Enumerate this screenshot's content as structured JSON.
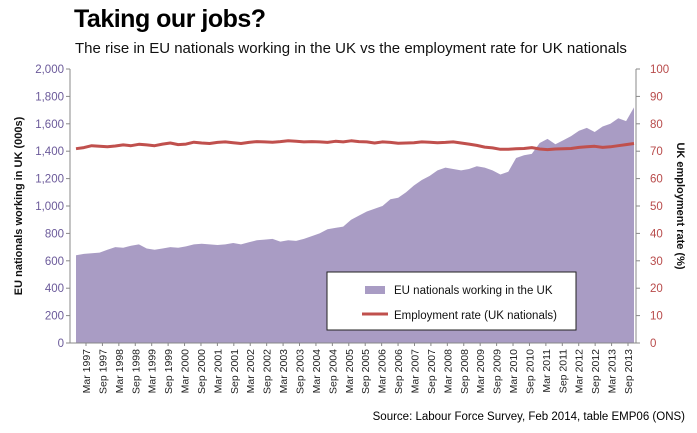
{
  "header": {
    "title": "Taking our jobs?",
    "subtitle": "The rise in EU nationals working in the UK vs the employment rate for UK nationals"
  },
  "footer": {
    "source": "Source: Labour Force Survey, Feb 2014, table EMP06 (ONS)"
  },
  "colors": {
    "area": "#a99cc4",
    "line": "#c0504d",
    "left_axis_text": "#6b5a9a",
    "right_axis_text": "#b84a4a"
  },
  "chart_data": {
    "type": "area",
    "title": "Taking our jobs?",
    "subtitle": "The rise in EU nationals working in the UK vs the employment rate for UK nationals",
    "xlabel": "",
    "ylabel": "EU nationals working in UK (000s)",
    "y2label": "UK employment rate (%)",
    "ylim": [
      0,
      2000
    ],
    "y2lim": [
      0,
      100
    ],
    "yticks": [
      "0",
      "200",
      "400",
      "600",
      "800",
      "1,000",
      "1,200",
      "1,400",
      "1,600",
      "1,800",
      "2,000"
    ],
    "y2ticks": [
      "0",
      "10",
      "20",
      "30",
      "40",
      "50",
      "60",
      "70",
      "80",
      "90",
      "100"
    ],
    "xtick_labels": [
      "Mar 1997",
      "Sep 1997",
      "Mar 1998",
      "Sep 1998",
      "Mar 1999",
      "Sep 1999",
      "Mar 2000",
      "Sep 2000",
      "Mar 2001",
      "Sep 2001",
      "Mar 2002",
      "Sep 2002",
      "Mar 2003",
      "Sep 2003",
      "Mar 2004",
      "Sep 2004",
      "Mar 2005",
      "Sep 2005",
      "Mar 2006",
      "Sep 2006",
      "Mar 2007",
      "Sep 2007",
      "Mar 2008",
      "Sep 2008",
      "Mar 2009",
      "Sep 2009",
      "Mar 2010",
      "Sep 2010",
      "Mar 2011",
      "Sep 2011",
      "Mar 2012",
      "Sep 2012",
      "Mar 2013",
      "Sep 2013"
    ],
    "grid": false,
    "legend_position": "bottom-right",
    "series": [
      {
        "name": "EU nationals working in the UK",
        "type": "area",
        "axis": "left",
        "values": [
          640,
          650,
          655,
          660,
          680,
          700,
          695,
          710,
          720,
          690,
          680,
          690,
          700,
          695,
          705,
          720,
          725,
          720,
          715,
          720,
          730,
          720,
          735,
          750,
          755,
          760,
          740,
          750,
          745,
          760,
          780,
          800,
          830,
          840,
          850,
          900,
          930,
          960,
          980,
          1000,
          1050,
          1060,
          1100,
          1150,
          1190,
          1220,
          1260,
          1280,
          1270,
          1260,
          1270,
          1290,
          1280,
          1260,
          1230,
          1250,
          1350,
          1370,
          1380,
          1460,
          1490,
          1450,
          1480,
          1510,
          1550,
          1570,
          1540,
          1580,
          1600,
          1640,
          1620,
          1720
        ]
      },
      {
        "name": "Employment rate (UK nationals)",
        "type": "line",
        "axis": "right",
        "values": [
          70.9,
          71.3,
          72.0,
          71.8,
          71.6,
          71.9,
          72.3,
          72.0,
          72.5,
          72.3,
          72.0,
          72.6,
          73.0,
          72.4,
          72.6,
          73.3,
          73.0,
          72.8,
          73.2,
          73.4,
          73.1,
          72.8,
          73.2,
          73.5,
          73.4,
          73.3,
          73.5,
          73.8,
          73.6,
          73.4,
          73.5,
          73.4,
          73.2,
          73.6,
          73.4,
          73.8,
          73.5,
          73.4,
          73.0,
          73.4,
          73.2,
          72.9,
          73.0,
          73.1,
          73.4,
          73.3,
          73.1,
          73.2,
          73.4,
          73.0,
          72.6,
          72.1,
          71.5,
          71.2,
          70.7,
          70.7,
          70.9,
          71.0,
          71.3,
          70.8,
          70.6,
          70.8,
          70.9,
          71.0,
          71.4,
          71.6,
          71.8,
          71.4,
          71.6,
          72.0,
          72.4,
          72.8
        ]
      }
    ]
  }
}
